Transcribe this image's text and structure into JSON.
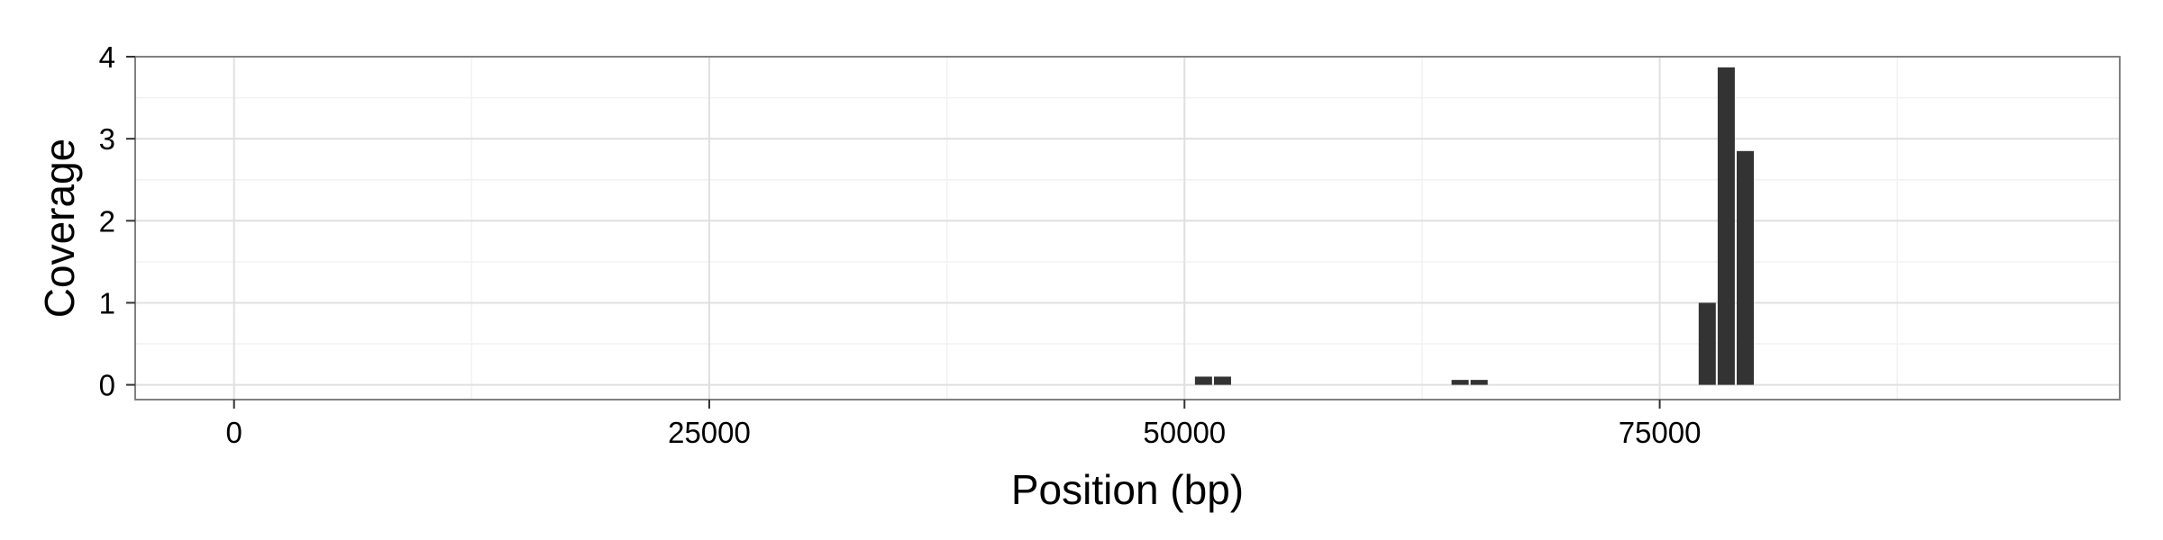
{
  "chart_data": {
    "type": "bar",
    "title": "",
    "xlabel": "Position (bp)",
    "ylabel": "Coverage",
    "xlim": [
      -5200,
      99200
    ],
    "ylim": [
      -0.18,
      4.0
    ],
    "xticks": [
      0,
      25000,
      50000,
      75000
    ],
    "xtick_labels": [
      "0",
      "25000",
      "50000",
      "75000"
    ],
    "yticks": [
      0,
      1,
      2,
      3,
      4
    ],
    "ytick_labels": [
      "0",
      "1",
      "2",
      "3",
      "4"
    ],
    "grid": true,
    "legend": "none",
    "bar_width": 900,
    "x": [
      51000,
      52000,
      64500,
      65500,
      77500,
      78500,
      79500
    ],
    "values": [
      0.1,
      0.1,
      0.06,
      0.06,
      1.0,
      3.87,
      2.85
    ],
    "colors": {
      "bar": "#333333",
      "panel_border": "#808080",
      "grid_major": "#e0e0e0",
      "grid_minor": "#f2f2f2",
      "background": "#ffffff"
    }
  }
}
